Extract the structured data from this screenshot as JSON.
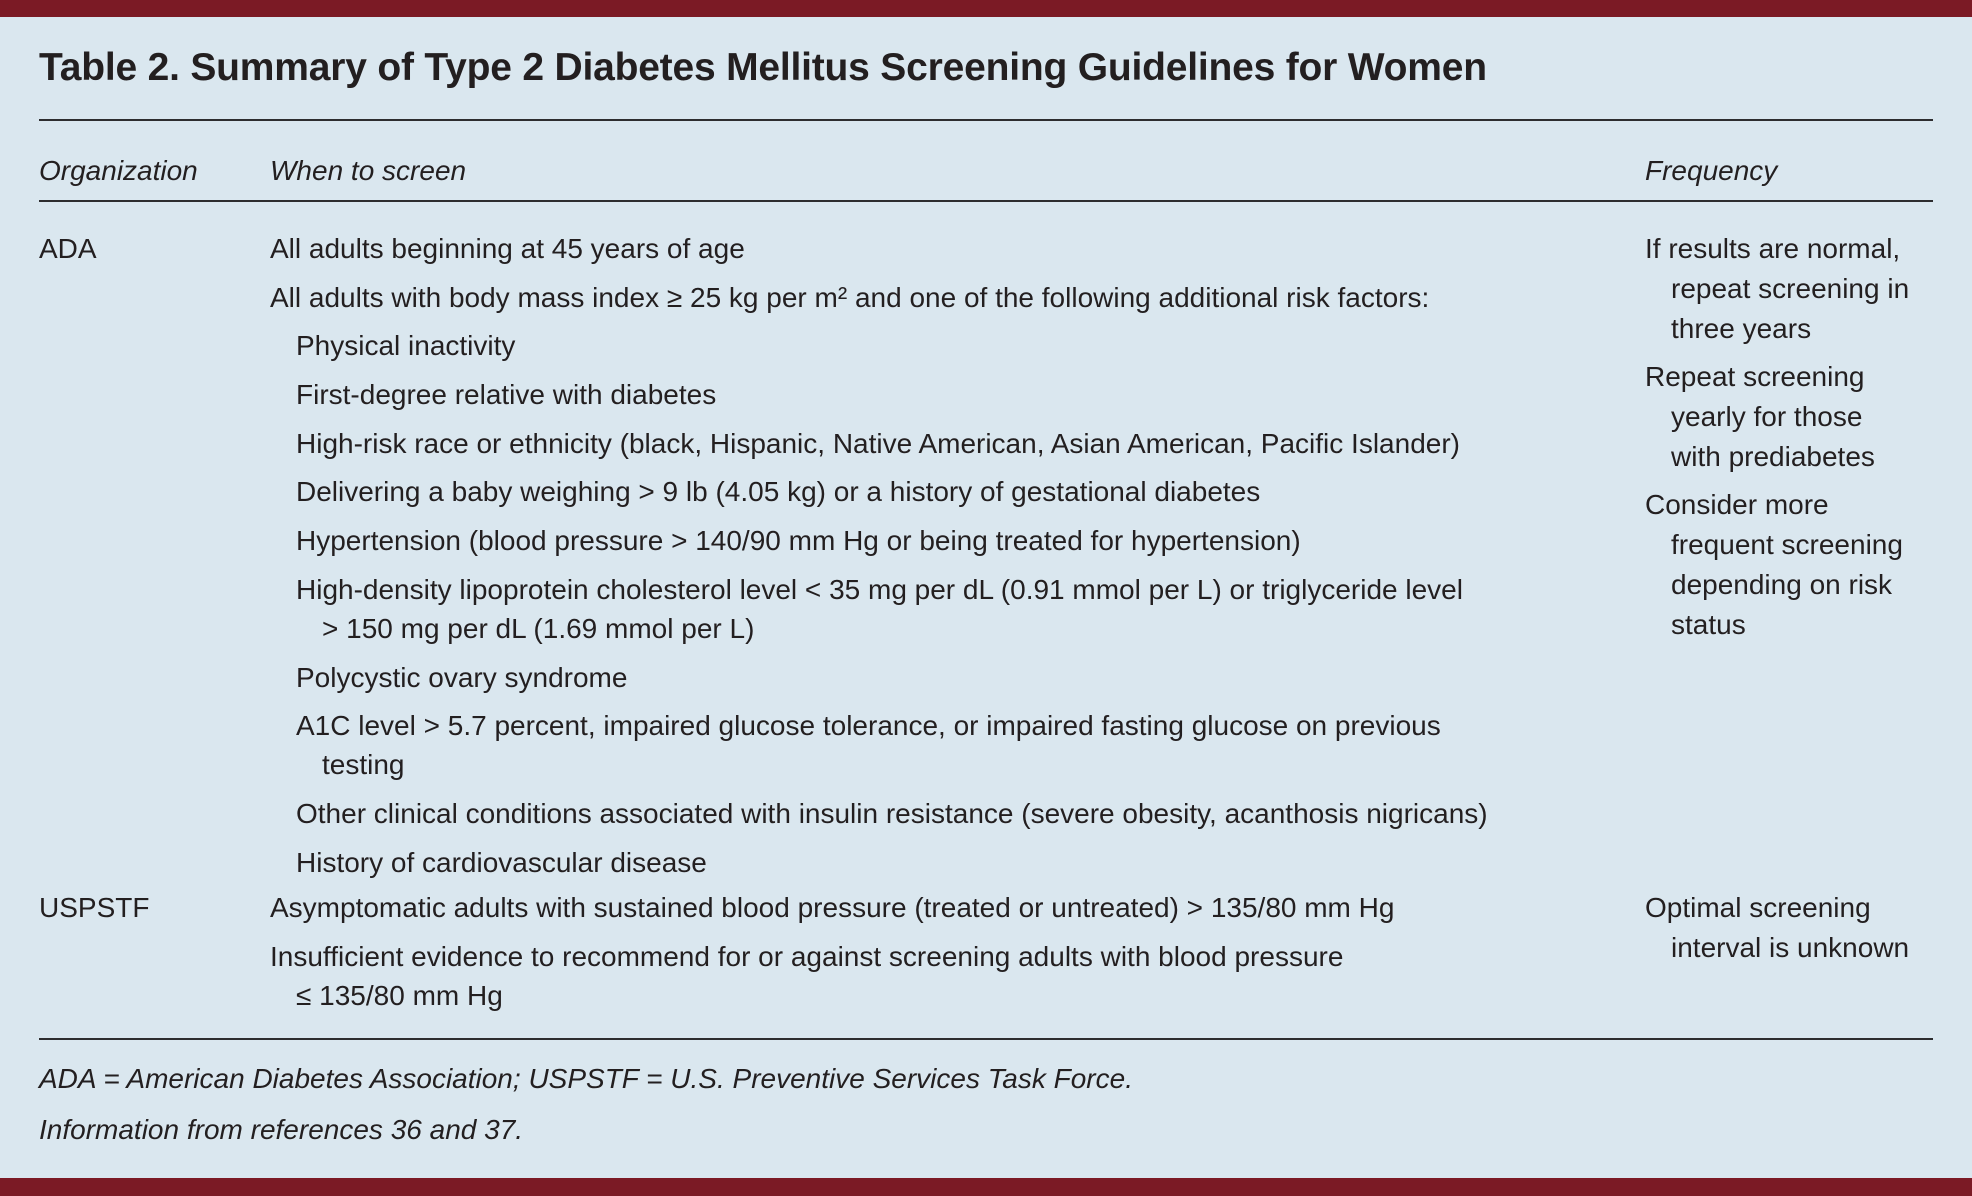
{
  "title": "Table 2. Summary of Type 2 Diabetes Mellitus Screening Guidelines for Women",
  "colors": {
    "accent_bar": "#7b1a25",
    "background": "#dae7ef"
  },
  "columns": [
    "Organization",
    "When to screen",
    "Frequency"
  ],
  "rows": [
    {
      "organization": "ADA",
      "when": [
        {
          "lines": [
            "All adults beginning at 45 years of age"
          ],
          "indent": false
        },
        {
          "lines": [
            "All adults with body mass index ≥ 25 kg per m² and one of the following additional risk factors:"
          ],
          "indent": false
        },
        {
          "lines": [
            "Physical inactivity"
          ],
          "indent": true
        },
        {
          "lines": [
            "First-degree relative with diabetes"
          ],
          "indent": true
        },
        {
          "lines": [
            "High-risk race or ethnicity (black, Hispanic, Native American, Asian American, Pacific Islander)"
          ],
          "indent": true
        },
        {
          "lines": [
            "Delivering a baby weighing > 9 lb (4.05 kg) or a history of gestational diabetes"
          ],
          "indent": true
        },
        {
          "lines": [
            "Hypertension (blood pressure > 140/90 mm Hg or being treated for hypertension)"
          ],
          "indent": true
        },
        {
          "lines": [
            "High-density lipoprotein cholesterol level < 35 mg per dL (0.91 mmol per L) or triglyceride level",
            "> 150 mg per dL (1.69 mmol per L)"
          ],
          "indent": true
        },
        {
          "lines": [
            "Polycystic ovary syndrome"
          ],
          "indent": true
        },
        {
          "lines": [
            "A1C level > 5.7 percent, impaired glucose tolerance, or impaired fasting glucose on previous",
            "testing"
          ],
          "indent": true
        },
        {
          "lines": [
            "Other clinical conditions associated with insulin resistance (severe obesity, acanthosis nigricans)"
          ],
          "indent": true
        },
        {
          "lines": [
            "History of cardiovascular disease"
          ],
          "indent": true
        }
      ],
      "frequency": [
        {
          "lines": [
            "If results are normal,",
            "repeat screening in",
            "three years"
          ]
        },
        {
          "lines": [
            "Repeat screening",
            "yearly for those",
            "with prediabetes"
          ]
        },
        {
          "lines": [
            "Consider more",
            "frequent screening",
            "depending on risk",
            "status"
          ]
        }
      ]
    },
    {
      "organization": "USPSTF",
      "when": [
        {
          "lines": [
            "Asymptomatic adults with sustained blood pressure (treated or untreated) > 135/80 mm Hg"
          ],
          "indent": false
        },
        {
          "lines": [
            "Insufficient evidence to recommend for or against screening adults with blood pressure",
            "≤ 135/80 mm Hg"
          ],
          "indent": false
        }
      ],
      "frequency": [
        {
          "lines": [
            "Optimal screening",
            "interval is unknown"
          ]
        }
      ]
    }
  ],
  "footnotes": [
    "ADA = American Diabetes Association; USPSTF = U.S. Preventive Services Task Force.",
    "Information from references 36 and 37."
  ]
}
